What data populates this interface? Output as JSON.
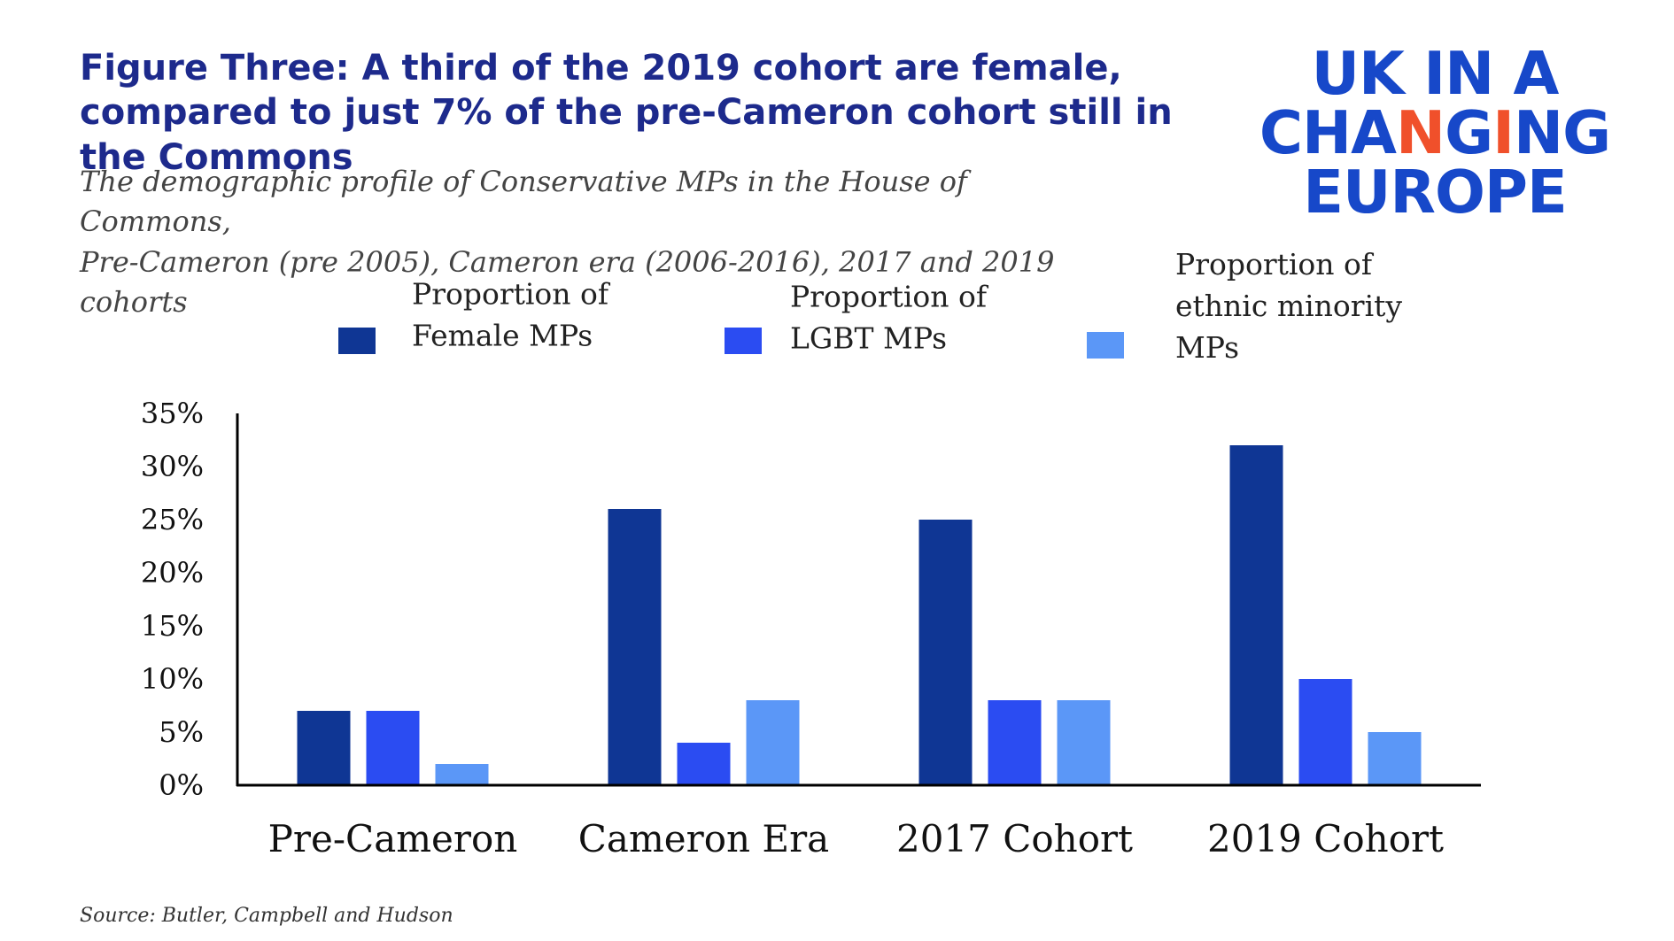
{
  "header": {
    "title": "Figure Three: A third of the 2019 cohort are female, compared to just 7% of the pre-Cameron cohort still in the Commons",
    "subtitle_line1": "The demographic profile of Conservative MPs in the House of Commons,",
    "subtitle_line2": "Pre-Cameron (pre 2005), Cameron era (2006-2016), 2017 and  2019 cohorts"
  },
  "logo": {
    "line1": "UK IN A",
    "line2_a": "CHA",
    "line2_b": "N",
    "line2_c": "G",
    "line2_d": "I",
    "line2_e": "NG",
    "line3": "EUROPE",
    "color": "#1748c9",
    "accent_color": "#f0502b"
  },
  "footer": {
    "source": "Source: Butler, Campbell and Hudson"
  },
  "chart_data": {
    "type": "bar",
    "categories": [
      "Pre-Cameron",
      "Cameron Era",
      "2017 Cohort",
      "2019 Cohort"
    ],
    "series": [
      {
        "name": "Proportion of Female MPs",
        "legend_lines": [
          "Proportion of",
          "Female MPs"
        ],
        "color": "#0f3694",
        "values": [
          7,
          26,
          25,
          32
        ]
      },
      {
        "name": "Proportion of LGBT MPs",
        "legend_lines": [
          "Proportion of",
          "LGBT MPs"
        ],
        "color": "#2b4cf2",
        "values": [
          7,
          4,
          8,
          10
        ]
      },
      {
        "name": "Proportion of ethnic minority MPs",
        "legend_lines": [
          "Proportion of",
          "ethnic minority",
          "MPs"
        ],
        "color": "#5b97f7",
        "values": [
          2,
          8,
          8,
          5
        ]
      }
    ],
    "yticks": [
      "0%",
      "5%",
      "10%",
      "15%",
      "20%",
      "25%",
      "30%",
      "35%"
    ],
    "ylim": [
      0,
      35
    ],
    "xlabel": "",
    "ylabel": "",
    "legend_position": "top",
    "grid": false
  }
}
